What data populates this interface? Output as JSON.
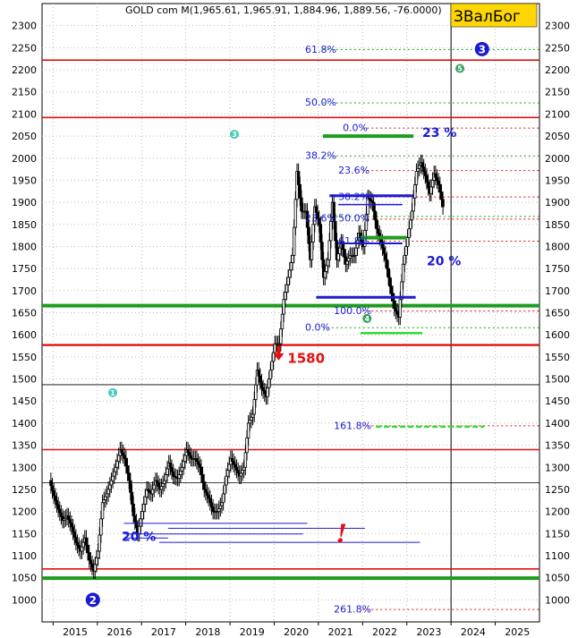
{
  "chart_data": {
    "type": "candlestick",
    "title": "GOLD com M(1,965.61, 1,965.91, 1,884.96, 1,889.56, -76.0000)",
    "brand": "ЗВалБог",
    "ylim": [
      950,
      2350
    ],
    "yticks": [
      1000,
      1050,
      1100,
      1150,
      1200,
      1250,
      1300,
      1350,
      1400,
      1450,
      1500,
      1550,
      1600,
      1650,
      1700,
      1750,
      1800,
      1850,
      1900,
      1950,
      2000,
      2050,
      2100,
      2150,
      2200,
      2250,
      2300
    ],
    "xlim": [
      2014.75,
      2026.0
    ],
    "xticks": [
      "2015",
      "2016",
      "2017",
      "2018",
      "2019",
      "2020",
      "2021",
      "2022",
      "2023",
      "2024",
      "2025"
    ],
    "price_path": [
      [
        2014.95,
        1270
      ],
      [
        2015.05,
        1235
      ],
      [
        2015.15,
        1205
      ],
      [
        2015.25,
        1180
      ],
      [
        2015.35,
        1190
      ],
      [
        2015.45,
        1165
      ],
      [
        2015.55,
        1130
      ],
      [
        2015.65,
        1110
      ],
      [
        2015.75,
        1140
      ],
      [
        2015.85,
        1090
      ],
      [
        2015.95,
        1065
      ],
      [
        2016.05,
        1110
      ],
      [
        2016.15,
        1220
      ],
      [
        2016.25,
        1240
      ],
      [
        2016.35,
        1270
      ],
      [
        2016.45,
        1300
      ],
      [
        2016.55,
        1340
      ],
      [
        2016.65,
        1320
      ],
      [
        2016.75,
        1270
      ],
      [
        2016.85,
        1190
      ],
      [
        2016.95,
        1150
      ],
      [
        2017.05,
        1200
      ],
      [
        2017.15,
        1250
      ],
      [
        2017.25,
        1240
      ],
      [
        2017.35,
        1270
      ],
      [
        2017.45,
        1250
      ],
      [
        2017.55,
        1270
      ],
      [
        2017.65,
        1310
      ],
      [
        2017.75,
        1280
      ],
      [
        2017.85,
        1275
      ],
      [
        2017.95,
        1300
      ],
      [
        2018.05,
        1340
      ],
      [
        2018.15,
        1320
      ],
      [
        2018.25,
        1320
      ],
      [
        2018.35,
        1300
      ],
      [
        2018.45,
        1250
      ],
      [
        2018.55,
        1230
      ],
      [
        2018.65,
        1200
      ],
      [
        2018.75,
        1200
      ],
      [
        2018.85,
        1220
      ],
      [
        2018.95,
        1280
      ],
      [
        2019.05,
        1320
      ],
      [
        2019.15,
        1300
      ],
      [
        2019.25,
        1280
      ],
      [
        2019.35,
        1300
      ],
      [
        2019.45,
        1400
      ],
      [
        2019.55,
        1420
      ],
      [
        2019.65,
        1520
      ],
      [
        2019.75,
        1480
      ],
      [
        2019.85,
        1460
      ],
      [
        2019.95,
        1520
      ],
      [
        2020.05,
        1580
      ],
      [
        2020.15,
        1580
      ],
      [
        2020.25,
        1680
      ],
      [
        2020.35,
        1730
      ],
      [
        2020.45,
        1780
      ],
      [
        2020.55,
        1970
      ],
      [
        2020.65,
        1880
      ],
      [
        2020.75,
        1880
      ],
      [
        2020.85,
        1770
      ],
      [
        2020.95,
        1890
      ],
      [
        2021.05,
        1850
      ],
      [
        2021.15,
        1730
      ],
      [
        2021.25,
        1770
      ],
      [
        2021.35,
        1900
      ],
      [
        2021.45,
        1770
      ],
      [
        2021.55,
        1810
      ],
      [
        2021.65,
        1760
      ],
      [
        2021.75,
        1780
      ],
      [
        2021.85,
        1780
      ],
      [
        2021.95,
        1830
      ],
      [
        2022.05,
        1800
      ],
      [
        2022.15,
        1910
      ],
      [
        2022.25,
        1900
      ],
      [
        2022.35,
        1840
      ],
      [
        2022.45,
        1810
      ],
      [
        2022.55,
        1770
      ],
      [
        2022.65,
        1710
      ],
      [
        2022.75,
        1660
      ],
      [
        2022.85,
        1640
      ],
      [
        2022.95,
        1760
      ],
      [
        2023.05,
        1820
      ],
      [
        2023.15,
        1880
      ],
      [
        2023.25,
        1970
      ],
      [
        2023.35,
        1990
      ],
      [
        2023.45,
        1960
      ],
      [
        2023.55,
        1920
      ],
      [
        2023.65,
        1965
      ],
      [
        2023.75,
        1940
      ],
      [
        2023.85,
        1890
      ]
    ],
    "horizontal_levels": [
      {
        "y": 2222,
        "color": "#e01010",
        "width": 1.6,
        "x1": 2014.75,
        "x2": 2026.0
      },
      {
        "y": 2092,
        "color": "#e01010",
        "width": 1.6,
        "x1": 2014.75,
        "x2": 2026.0
      },
      {
        "y": 1666,
        "color": "#1e9c1e",
        "width": 4,
        "x1": 2014.75,
        "x2": 2026.0
      },
      {
        "y": 1577,
        "color": "#e01010",
        "width": 2.4,
        "x1": 2014.75,
        "x2": 2026.0
      },
      {
        "y": 1487,
        "color": "#000000",
        "width": 0.8,
        "x1": 2014.75,
        "x2": 2026.0
      },
      {
        "y": 1340,
        "color": "#e01010",
        "width": 1.6,
        "x1": 2014.75,
        "x2": 2026.0
      },
      {
        "y": 1265,
        "color": "#000000",
        "width": 0.8,
        "x1": 2014.75,
        "x2": 2026.0
      },
      {
        "y": 1070,
        "color": "#e01010",
        "width": 1.6,
        "x1": 2014.75,
        "x2": 2026.0
      },
      {
        "y": 1049,
        "color": "#1e9c1e",
        "width": 4,
        "x1": 2014.75,
        "x2": 2026.0
      }
    ],
    "segments": [
      {
        "x1": 2021.1,
        "x2": 2023.15,
        "y": 2050,
        "color": "#1e9c1e",
        "width": 4
      },
      {
        "x1": 2021.25,
        "x2": 2023.15,
        "y": 1915,
        "color": "#1a1ad4",
        "width": 3
      },
      {
        "x1": 2021.45,
        "x2": 2022.9,
        "y": 1895,
        "color": "#1a1ad4",
        "width": 1.5
      },
      {
        "x1": 2021.95,
        "x2": 2023.0,
        "y": 1820,
        "color": "#1e9c1e",
        "width": 4
      },
      {
        "x1": 2021.45,
        "x2": 2022.9,
        "y": 1807,
        "color": "#1a1ad4",
        "width": 2
      },
      {
        "x1": 2020.95,
        "x2": 2023.2,
        "y": 1685,
        "color": "#1a1ad4",
        "width": 3
      },
      {
        "x1": 2021.95,
        "x2": 2023.35,
        "y": 1604,
        "color": "#33dd33",
        "width": 2.5
      },
      {
        "x1": 2016.6,
        "x2": 2020.75,
        "y": 1173,
        "color": "#1a1ad4",
        "width": 1
      },
      {
        "x1": 2017.6,
        "x2": 2022.05,
        "y": 1162,
        "color": "#1a1ad4",
        "width": 1
      },
      {
        "x1": 2016.6,
        "x2": 2020.65,
        "y": 1149,
        "color": "#1a1ad4",
        "width": 1
      },
      {
        "x1": 2017.4,
        "x2": 2023.3,
        "y": 1130,
        "color": "#1a1ad4",
        "width": 1
      },
      {
        "x1": 2016.6,
        "x2": 2017.6,
        "y": 1140,
        "color": "#1a1ad4",
        "width": 1
      },
      {
        "x1": 2022.3,
        "x2": 2024.75,
        "y": 1392,
        "color": "#33dd33",
        "width": 2.5,
        "dash": "6,3"
      }
    ],
    "fib_dotted": [
      {
        "y": 2246,
        "color": "#1e9c1e",
        "x1": 2021.1
      },
      {
        "y": 2125,
        "color": "#1e9c1e",
        "x1": 2021.1
      },
      {
        "y": 2068,
        "color": "#e01010",
        "x1": 2022.0
      },
      {
        "y": 2005,
        "color": "#1e9c1e",
        "x1": 2021.1
      },
      {
        "y": 1972,
        "color": "#e01010",
        "x1": 2022.0
      },
      {
        "y": 1912,
        "color": "#e01010",
        "x1": 2022.0
      },
      {
        "y": 1868,
        "color": "#1e9c1e",
        "x1": 2021.1
      },
      {
        "y": 1862,
        "color": "#e01010",
        "x1": 2022.0
      },
      {
        "y": 1812,
        "color": "#e01010",
        "x1": 2022.0
      },
      {
        "y": 1654,
        "color": "#e01010",
        "x1": 2022.0
      },
      {
        "y": 1616,
        "color": "#1e9c1e",
        "x1": 2021.1
      },
      {
        "y": 1394,
        "color": "#e01010",
        "x1": 2022.0
      },
      {
        "y": 978,
        "color": "#e01010",
        "x1": 2022.0
      }
    ],
    "annotations": [
      {
        "text": "61.8%",
        "x": 2020.7,
        "y": 2239,
        "class": "fib"
      },
      {
        "text": "50.0%",
        "x": 2020.7,
        "y": 2119,
        "class": "fib"
      },
      {
        "text": "0.0%",
        "x": 2021.55,
        "y": 2061,
        "class": "fib"
      },
      {
        "text": "38.2%",
        "x": 2020.7,
        "y": 1998,
        "class": "fib"
      },
      {
        "text": "23.6%",
        "x": 2021.45,
        "y": 1965,
        "class": "fib"
      },
      {
        "text": "38.2%",
        "x": 2021.45,
        "y": 1905,
        "class": "fib"
      },
      {
        "text": "23.6%",
        "x": 2020.7,
        "y": 1857,
        "class": "fib"
      },
      {
        "text": "50.0%",
        "x": 2021.45,
        "y": 1857,
        "class": "fib"
      },
      {
        "text": "61.8%",
        "x": 2021.45,
        "y": 1805,
        "class": "fib"
      },
      {
        "text": "100.0%",
        "x": 2021.35,
        "y": 1647,
        "class": "fib"
      },
      {
        "text": "0.0%",
        "x": 2020.7,
        "y": 1609,
        "class": "fib"
      },
      {
        "text": "161.8%",
        "x": 2021.35,
        "y": 1387,
        "class": "fib"
      },
      {
        "text": "261.8%",
        "x": 2021.35,
        "y": 971,
        "class": "fib"
      },
      {
        "text": "23 %",
        "x": 2023.35,
        "y": 2048,
        "class": "bigpct"
      },
      {
        "text": "20 %",
        "x": 2023.45,
        "y": 1757,
        "class": "bigpct"
      },
      {
        "text": "20 %",
        "x": 2016.55,
        "y": 1133,
        "class": "bigpct"
      },
      {
        "text": "1580",
        "x": 2020.3,
        "y": 1537,
        "class": "big1580"
      },
      {
        "text": "!",
        "x": 2021.4,
        "y": 1130,
        "class": "excl"
      }
    ],
    "badges": [
      {
        "text": "3",
        "x": 2024.7,
        "y": 2247,
        "color": "#1a1ad4",
        "r": 8
      },
      {
        "text": "2",
        "x": 2015.9,
        "y": 1000,
        "color": "#1a1ad4",
        "r": 8
      },
      {
        "text": "5",
        "x": 2024.2,
        "y": 2203,
        "color": "#3aa060",
        "r": 5
      },
      {
        "text": "3",
        "x": 2019.1,
        "y": 2054,
        "color": "#44ccbb",
        "r": 5
      },
      {
        "text": "1",
        "x": 2016.35,
        "y": 1469,
        "color": "#44ccbb",
        "r": 5
      },
      {
        "text": "4",
        "x": 2022.1,
        "y": 1637,
        "color": "#3aa060",
        "r": 5
      }
    ],
    "markers": [
      {
        "type": "down-arrow",
        "x": 2020.1,
        "y": 1550,
        "color": "#e01010"
      }
    ],
    "vlines": [
      2024.0
    ]
  }
}
